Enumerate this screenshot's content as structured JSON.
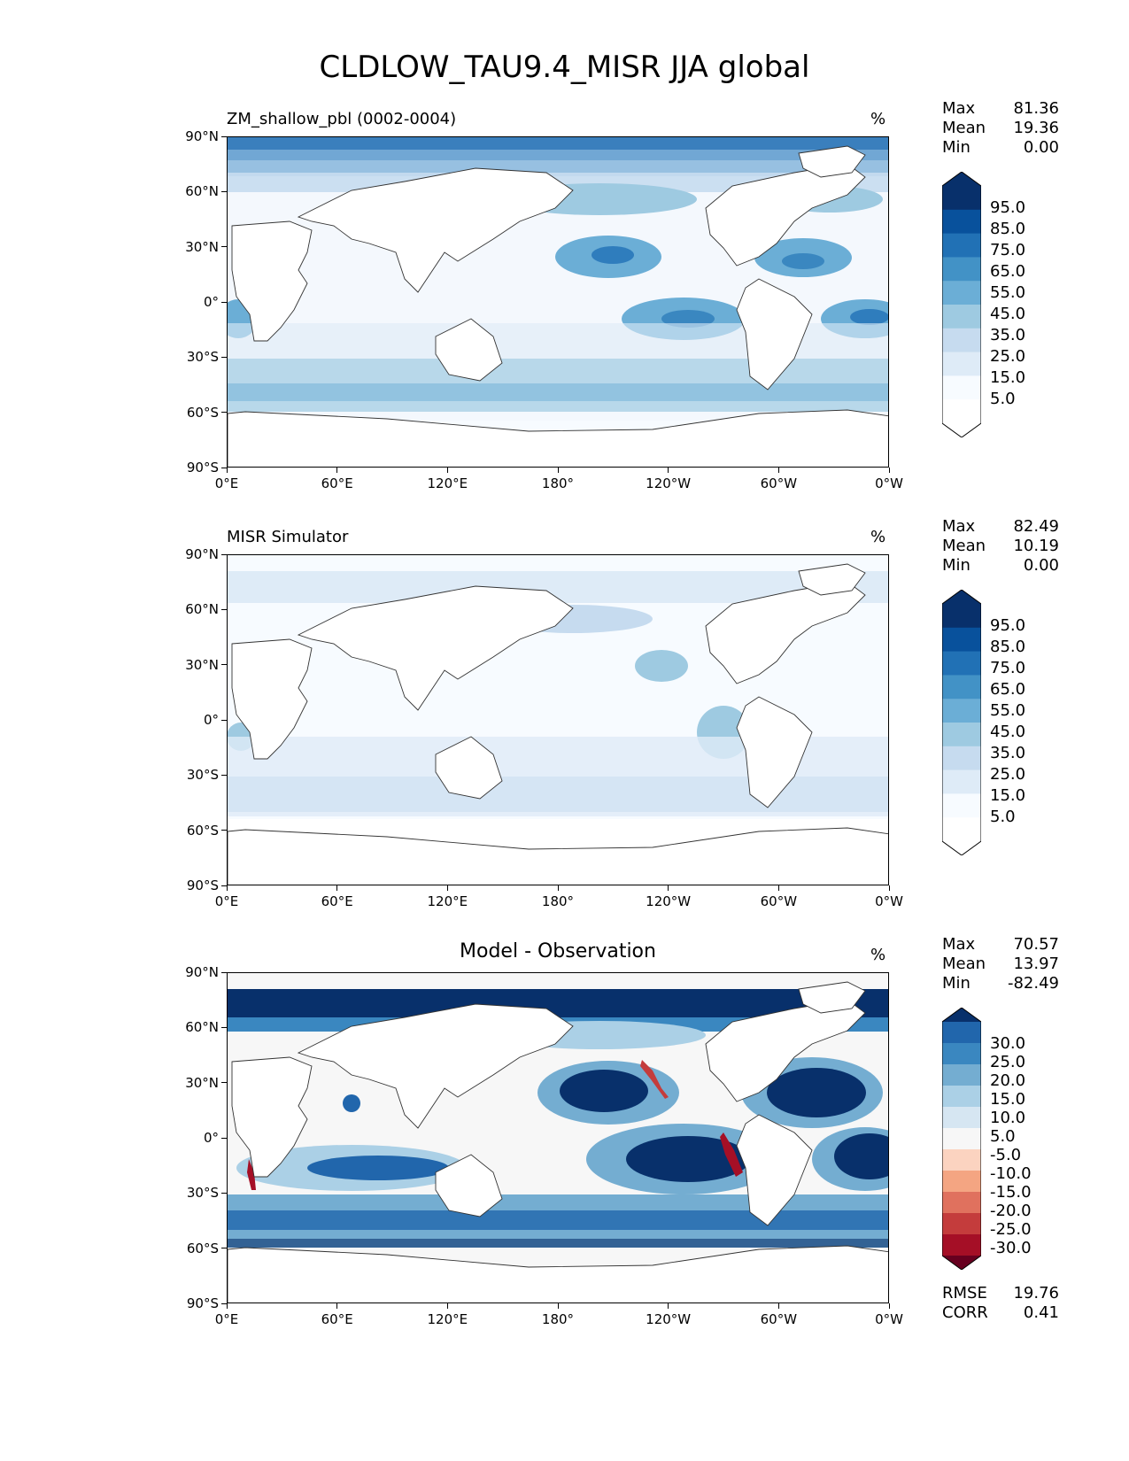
{
  "figure": {
    "title": "CLDLOW_TAU9.4_MISR JJA global"
  },
  "axes": {
    "lat_ticks": [
      "90°N",
      "60°N",
      "30°N",
      "0°",
      "30°S",
      "60°S",
      "90°S"
    ],
    "lon_ticks": [
      "0°E",
      "60°E",
      "120°E",
      "180°",
      "120°W",
      "60°W",
      "0°W"
    ]
  },
  "panels": [
    {
      "title": "ZM_shallow_pbl (0002-0004)",
      "unit": "%",
      "stats": {
        "max_label": "Max",
        "max": "81.36",
        "mean_label": "Mean",
        "mean": "19.36",
        "min_label": "Min",
        "min": "0.00"
      },
      "colorbar": {
        "labels": [
          "95.0",
          "85.0",
          "75.0",
          "65.0",
          "55.0",
          "45.0",
          "35.0",
          "25.0",
          "15.0",
          "5.0"
        ],
        "colors": [
          "#08306b",
          "#08519c",
          "#2171b5",
          "#4292c6",
          "#6baed6",
          "#9ecae1",
          "#c6dbef",
          "#deebf7",
          "#f7fbff",
          "#ffffff"
        ]
      }
    },
    {
      "title": "MISR Simulator",
      "unit": "%",
      "stats": {
        "max_label": "Max",
        "max": "82.49",
        "mean_label": "Mean",
        "mean": "10.19",
        "min_label": "Min",
        "min": "0.00"
      },
      "colorbar": {
        "labels": [
          "95.0",
          "85.0",
          "75.0",
          "65.0",
          "55.0",
          "45.0",
          "35.0",
          "25.0",
          "15.0",
          "5.0"
        ],
        "colors": [
          "#08306b",
          "#08519c",
          "#2171b5",
          "#4292c6",
          "#6baed6",
          "#9ecae1",
          "#c6dbef",
          "#deebf7",
          "#f7fbff",
          "#ffffff"
        ]
      }
    },
    {
      "title": "Model - Observation",
      "unit": "%",
      "stats": {
        "max_label": "Max",
        "max": "70.57",
        "mean_label": "Mean",
        "mean": "13.97",
        "min_label": "Min",
        "min": "-82.49"
      },
      "colorbar": {
        "labels": [
          "30.0",
          "25.0",
          "20.0",
          "15.0",
          "10.0",
          "5.0",
          "-5.0",
          "-10.0",
          "-15.0",
          "-20.0",
          "-25.0",
          "-30.0"
        ],
        "colors": [
          "#08306b",
          "#2166ac",
          "#3a87c0",
          "#74add1",
          "#abd0e6",
          "#d6e6f2",
          "#f7f7f7",
          "#fbd3c0",
          "#f4a582",
          "#e0715e",
          "#c43c3c",
          "#a50f26",
          "#67001f"
        ]
      },
      "metrics": {
        "rmse_label": "RMSE",
        "rmse": "19.76",
        "corr_label": "CORR",
        "corr": "0.41"
      }
    }
  ],
  "chart_data": [
    {
      "type": "heatmap",
      "title": "ZM_shallow_pbl (0002-0004)",
      "variable": "CLDLOW_TAU9.4_MISR",
      "season": "JJA",
      "unit": "%",
      "xlim": [
        0,
        360
      ],
      "ylim": [
        -90,
        90
      ],
      "levels": [
        5,
        15,
        25,
        35,
        45,
        55,
        65,
        75,
        85,
        95
      ],
      "max": 81.36,
      "mean": 19.36,
      "min": 0.0
    },
    {
      "type": "heatmap",
      "title": "MISR Simulator",
      "unit": "%",
      "xlim": [
        0,
        360
      ],
      "ylim": [
        -90,
        90
      ],
      "levels": [
        5,
        15,
        25,
        35,
        45,
        55,
        65,
        75,
        85,
        95
      ],
      "max": 82.49,
      "mean": 10.19,
      "min": 0.0
    },
    {
      "type": "heatmap",
      "title": "Model - Observation",
      "unit": "%",
      "xlim": [
        0,
        360
      ],
      "ylim": [
        -90,
        90
      ],
      "levels": [
        -30,
        -25,
        -20,
        -15,
        -10,
        -5,
        5,
        10,
        15,
        20,
        25,
        30
      ],
      "max": 70.57,
      "mean": 13.97,
      "min": -82.49,
      "rmse": 19.76,
      "corr": 0.41
    }
  ]
}
